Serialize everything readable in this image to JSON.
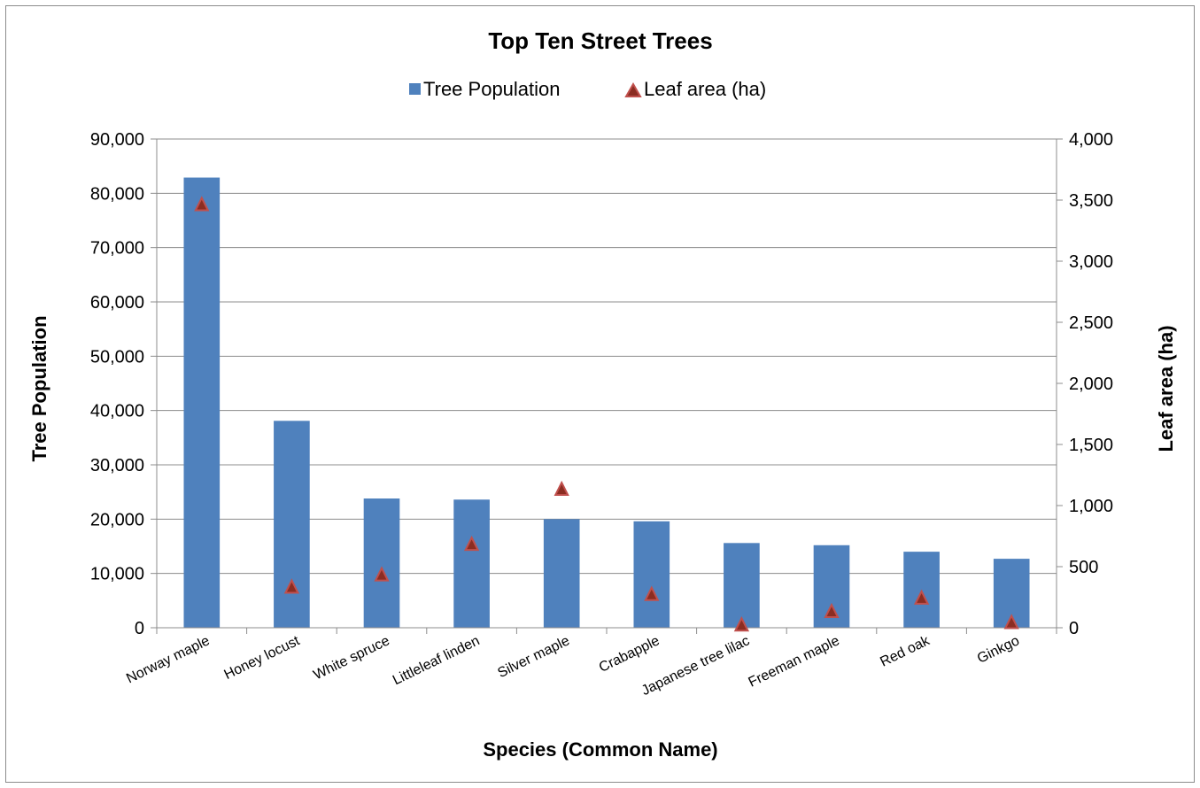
{
  "chart_data": {
    "type": "bar",
    "title": "Top Ten Street Trees",
    "xlabel": "Species (Common Name)",
    "ylabel": "Tree Population",
    "y2label": "Leaf area (ha)",
    "categories": [
      "Norway maple",
      "Honey locust",
      "White spruce",
      "Littleleaf linden",
      "Silver maple",
      "Crabapple",
      "Japanese tree lilac",
      "Freeman maple",
      "Red oak",
      "Ginkgo"
    ],
    "series": [
      {
        "name": "Tree Population",
        "type": "bar",
        "axis": "left",
        "color": "#4f81bd",
        "values": [
          82900,
          38100,
          23800,
          23600,
          20000,
          19600,
          15600,
          15200,
          14000,
          12700
        ]
      },
      {
        "name": "Leaf area (ha)",
        "type": "scatter",
        "marker": "triangle",
        "axis": "right",
        "color": "#8b2d22",
        "edge_color": "#c0504d",
        "values": [
          3460,
          330,
          430,
          680,
          1130,
          270,
          20,
          130,
          240,
          40
        ]
      }
    ],
    "ylim": [
      0,
      90000
    ],
    "y2lim": [
      0,
      4000
    ],
    "yticks": [
      "0",
      "10,000",
      "20,000",
      "30,000",
      "40,000",
      "50,000",
      "60,000",
      "70,000",
      "80,000",
      "90,000"
    ],
    "y2ticks": [
      "0",
      "500",
      "1,000",
      "1,500",
      "2,000",
      "2,500",
      "3,000",
      "3,500",
      "4,000"
    ],
    "grid": true,
    "legend_position": "top",
    "gridline_color": "#8c8c8c"
  }
}
